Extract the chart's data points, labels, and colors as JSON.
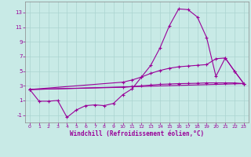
{
  "xlabel": "Windchill (Refroidissement éolien,°C)",
  "bg_color": "#c8eae6",
  "line_color": "#990099",
  "grid_color": "#aad4d0",
  "xlim": [
    -0.5,
    23.5
  ],
  "ylim": [
    -2.0,
    14.5
  ],
  "xticks": [
    0,
    1,
    2,
    3,
    4,
    5,
    6,
    7,
    8,
    9,
    10,
    11,
    12,
    13,
    14,
    15,
    16,
    17,
    18,
    19,
    20,
    21,
    22,
    23
  ],
  "yticks": [
    -1,
    1,
    3,
    5,
    7,
    9,
    11,
    13
  ],
  "line1": [
    [
      0,
      2.5
    ],
    [
      1,
      0.9
    ],
    [
      2,
      0.9
    ],
    [
      3,
      1.0
    ],
    [
      4,
      -1.3
    ],
    [
      5,
      -0.3
    ],
    [
      6,
      0.3
    ],
    [
      7,
      0.4
    ],
    [
      8,
      0.3
    ],
    [
      9,
      0.6
    ],
    [
      10,
      1.8
    ],
    [
      11,
      2.6
    ],
    [
      12,
      4.2
    ],
    [
      13,
      5.8
    ],
    [
      14,
      8.2
    ],
    [
      15,
      11.2
    ],
    [
      16,
      13.5
    ],
    [
      17,
      13.4
    ],
    [
      18,
      12.4
    ],
    [
      19,
      9.6
    ],
    [
      20,
      4.3
    ],
    [
      21,
      6.8
    ],
    [
      22,
      5.0
    ],
    [
      23,
      3.3
    ]
  ],
  "line2": [
    [
      0,
      2.5
    ],
    [
      10,
      3.5
    ],
    [
      11,
      3.8
    ],
    [
      12,
      4.2
    ],
    [
      13,
      4.7
    ],
    [
      14,
      5.1
    ],
    [
      15,
      5.4
    ],
    [
      16,
      5.6
    ],
    [
      17,
      5.7
    ],
    [
      18,
      5.8
    ],
    [
      19,
      5.9
    ],
    [
      20,
      6.7
    ],
    [
      21,
      6.8
    ],
    [
      22,
      5.0
    ],
    [
      23,
      3.3
    ]
  ],
  "line3": [
    [
      0,
      2.5
    ],
    [
      23,
      3.3
    ]
  ],
  "line4": [
    [
      0,
      2.5
    ],
    [
      10,
      2.8
    ],
    [
      11,
      2.9
    ],
    [
      12,
      3.0
    ],
    [
      13,
      3.1
    ],
    [
      14,
      3.2
    ],
    [
      15,
      3.25
    ],
    [
      16,
      3.3
    ],
    [
      17,
      3.32
    ],
    [
      18,
      3.35
    ],
    [
      19,
      3.4
    ],
    [
      20,
      3.4
    ],
    [
      21,
      3.4
    ],
    [
      22,
      3.4
    ],
    [
      23,
      3.3
    ]
  ]
}
